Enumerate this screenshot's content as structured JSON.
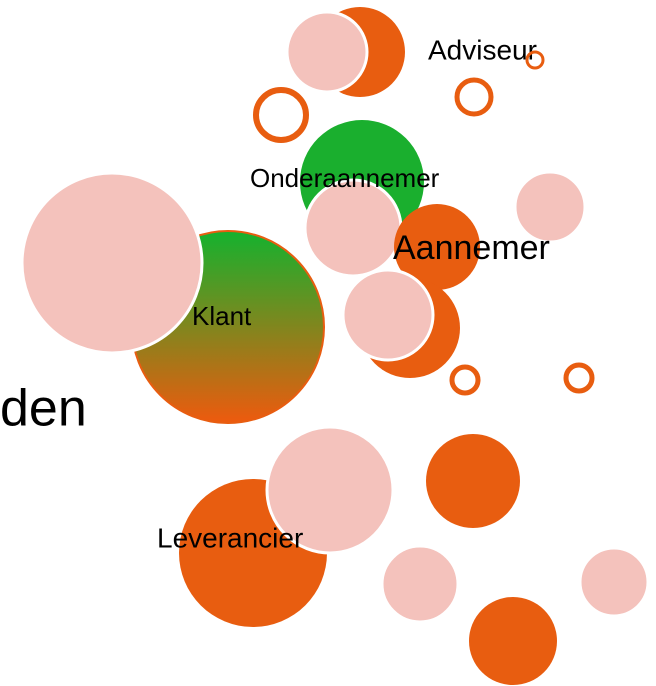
{
  "labels": {
    "partial": "den",
    "adviseur": "Adviseur",
    "onderaannemer": "Onderaannemer",
    "aannemer": "Aannemer",
    "klant": "Klant",
    "leverancier": "Leverancier"
  }
}
